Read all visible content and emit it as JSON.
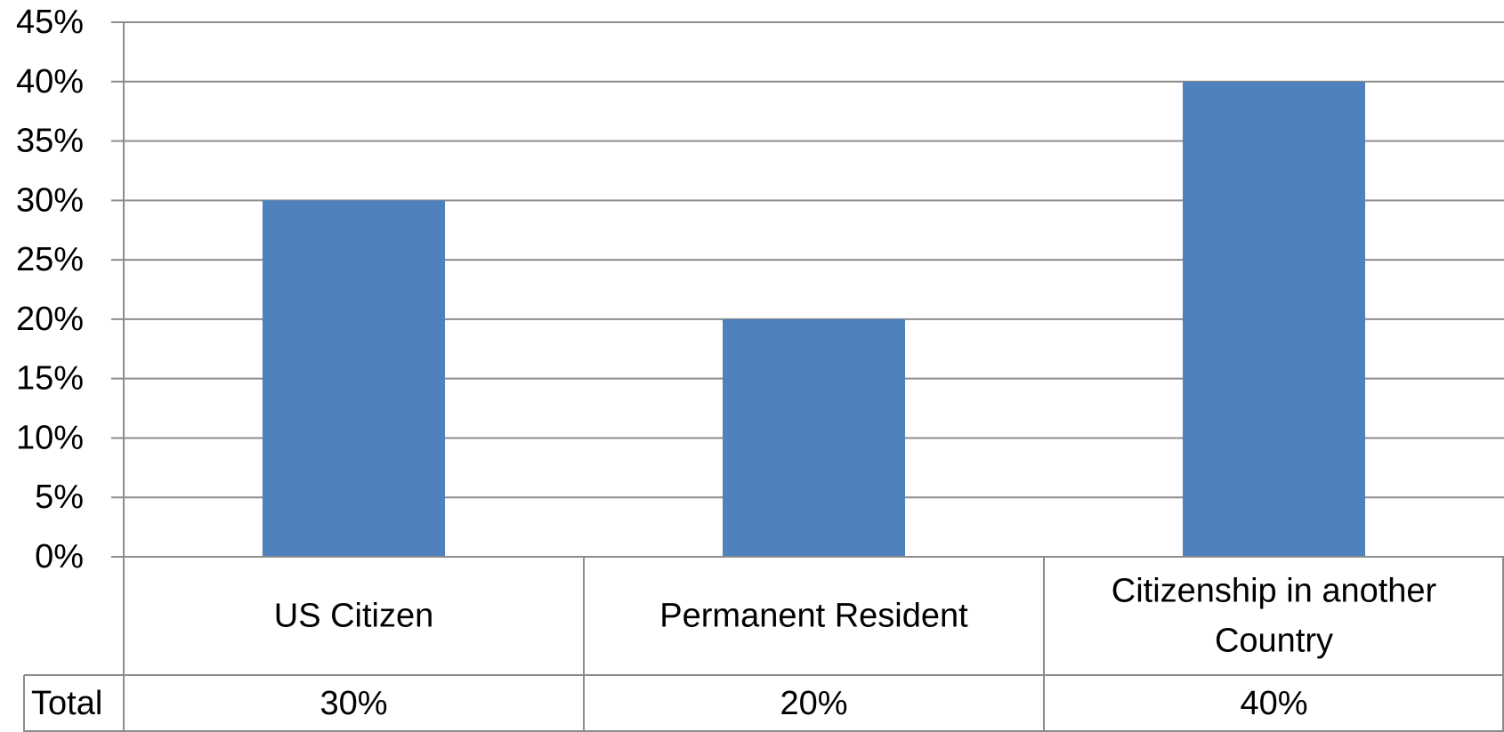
{
  "chart_data": {
    "type": "bar",
    "categories": [
      "US Citizen",
      "Permanent Resident",
      "Citizenship in another Country"
    ],
    "category_lines": [
      [
        "US Citizen"
      ],
      [
        "Permanent Resident"
      ],
      [
        "Citizenship in another",
        "Country"
      ]
    ],
    "series": [
      {
        "name": "Total",
        "values": [
          30,
          20,
          40
        ]
      }
    ],
    "value_labels": [
      "30%",
      "20%",
      "40%"
    ],
    "yticks": [
      "0%",
      "5%",
      "10%",
      "15%",
      "20%",
      "25%",
      "30%",
      "35%",
      "40%",
      "45%"
    ],
    "ylim": [
      0,
      45
    ],
    "grid": true,
    "legend": "data-table",
    "bar_color": "#4F81BD"
  }
}
